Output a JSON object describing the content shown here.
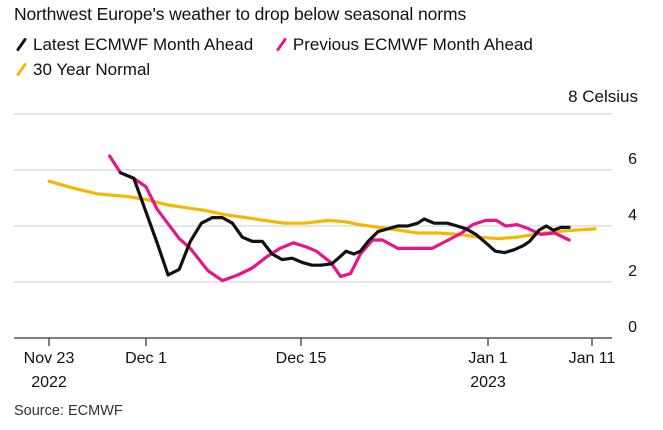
{
  "colors": {
    "latest": "#111111",
    "previous": "#e8158a",
    "normal": "#f5b700",
    "grid": "#dddddd",
    "axis": "#555555"
  },
  "chart_data": {
    "type": "line",
    "title": "Northwest Europe's weather to drop below seasonal norms",
    "ylabel": "Celsius",
    "unit_label": "8 Celsius",
    "ylim": [
      0,
      8
    ],
    "yticks": [
      0,
      2,
      4,
      6,
      8
    ],
    "ytick_labels": [
      "0",
      "2",
      "4",
      "6",
      ""
    ],
    "grid": true,
    "legend_position": "top-left",
    "x_axis": {
      "start_date": "2022-11-23",
      "ticks": [
        {
          "day": 0,
          "label": "Nov 23",
          "sublabel": "2022"
        },
        {
          "day": 8,
          "label": "Dec 1",
          "sublabel": ""
        },
        {
          "day": 22,
          "label": "Dec 15",
          "sublabel": ""
        },
        {
          "day": 39,
          "label": "Jan 1",
          "sublabel": "2023"
        },
        {
          "day": 49,
          "label": "Jan 11",
          "sublabel": ""
        }
      ]
    },
    "series": [
      {
        "key": "latest",
        "name": "Latest ECMWF Month Ahead",
        "points": [
          [
            5.9,
            5.9
          ],
          [
            7.0,
            5.7
          ],
          [
            9.0,
            3.4
          ],
          [
            10.0,
            2.25
          ],
          [
            11.0,
            2.45
          ],
          [
            12.0,
            3.45
          ],
          [
            13.0,
            4.1
          ],
          [
            14.0,
            4.3
          ],
          [
            14.9,
            4.3
          ],
          [
            15.8,
            4.1
          ],
          [
            16.7,
            3.6
          ],
          [
            17.6,
            3.45
          ],
          [
            18.5,
            3.45
          ],
          [
            19.4,
            3.0
          ],
          [
            20.3,
            2.8
          ],
          [
            21.2,
            2.85
          ],
          [
            22.1,
            2.7
          ],
          [
            23.0,
            2.6
          ],
          [
            23.8,
            2.6
          ],
          [
            24.8,
            2.65
          ],
          [
            25.4,
            2.85
          ],
          [
            26.1,
            3.1
          ],
          [
            26.8,
            3.0
          ],
          [
            27.4,
            3.1
          ],
          [
            28.1,
            3.45
          ],
          [
            29.0,
            3.8
          ],
          [
            29.9,
            3.9
          ],
          [
            30.8,
            4.0
          ],
          [
            31.7,
            4.0
          ],
          [
            32.6,
            4.1
          ],
          [
            33.2,
            4.25
          ],
          [
            34.1,
            4.1
          ],
          [
            35.3,
            4.1
          ],
          [
            36.2,
            4.0
          ],
          [
            37.0,
            3.9
          ],
          [
            37.9,
            3.7
          ],
          [
            38.8,
            3.4
          ],
          [
            39.7,
            3.1
          ],
          [
            40.6,
            3.05
          ],
          [
            41.5,
            3.15
          ],
          [
            42.4,
            3.3
          ],
          [
            43.0,
            3.45
          ],
          [
            43.9,
            3.85
          ],
          [
            44.6,
            4.0
          ],
          [
            45.3,
            3.85
          ],
          [
            46.0,
            3.95
          ],
          [
            46.8,
            3.95
          ]
        ]
      },
      {
        "key": "previous",
        "name": "Previous ECMWF Month Ahead",
        "points": [
          [
            5.0,
            6.5
          ],
          [
            5.9,
            5.9
          ],
          [
            7.0,
            5.7
          ],
          [
            8.0,
            5.4
          ],
          [
            9.0,
            4.6
          ],
          [
            11.0,
            3.55
          ],
          [
            12.0,
            3.2
          ],
          [
            13.6,
            2.4
          ],
          [
            14.9,
            2.05
          ],
          [
            16.3,
            2.25
          ],
          [
            17.6,
            2.5
          ],
          [
            18.9,
            2.9
          ],
          [
            20.1,
            3.2
          ],
          [
            21.3,
            3.4
          ],
          [
            22.5,
            3.25
          ],
          [
            23.4,
            3.1
          ],
          [
            24.7,
            2.7
          ],
          [
            25.6,
            2.2
          ],
          [
            26.5,
            2.3
          ],
          [
            27.4,
            3.0
          ],
          [
            28.5,
            3.5
          ],
          [
            29.4,
            3.5
          ],
          [
            30.8,
            3.2
          ],
          [
            31.7,
            3.2
          ],
          [
            32.9,
            3.2
          ],
          [
            33.9,
            3.2
          ],
          [
            35.4,
            3.5
          ],
          [
            36.6,
            3.75
          ],
          [
            37.6,
            4.05
          ],
          [
            38.8,
            4.2
          ],
          [
            39.8,
            4.2
          ],
          [
            40.7,
            4.0
          ],
          [
            41.8,
            4.05
          ],
          [
            42.9,
            3.9
          ],
          [
            44.1,
            3.7
          ],
          [
            45.4,
            3.75
          ],
          [
            46.8,
            3.5
          ]
        ]
      },
      {
        "key": "normal",
        "name": "30 Year Normal",
        "points": [
          [
            0.0,
            5.6
          ],
          [
            2.0,
            5.35
          ],
          [
            4.0,
            5.15
          ],
          [
            6.5,
            5.05
          ],
          [
            8.0,
            4.95
          ],
          [
            10.0,
            4.75
          ],
          [
            11.7,
            4.65
          ],
          [
            13.4,
            4.55
          ],
          [
            15.2,
            4.4
          ],
          [
            17.0,
            4.3
          ],
          [
            18.7,
            4.2
          ],
          [
            20.5,
            4.1
          ],
          [
            22.3,
            4.1
          ],
          [
            24.5,
            4.2
          ],
          [
            26.0,
            4.15
          ],
          [
            27.3,
            4.05
          ],
          [
            29.1,
            3.95
          ],
          [
            30.9,
            3.85
          ],
          [
            32.6,
            3.75
          ],
          [
            34.5,
            3.75
          ],
          [
            36.3,
            3.7
          ],
          [
            38.2,
            3.6
          ],
          [
            40.0,
            3.55
          ],
          [
            41.8,
            3.6
          ],
          [
            43.5,
            3.7
          ],
          [
            45.4,
            3.8
          ],
          [
            47.3,
            3.85
          ],
          [
            49.3,
            3.9
          ]
        ]
      }
    ]
  },
  "source": "Source: ECMWF"
}
